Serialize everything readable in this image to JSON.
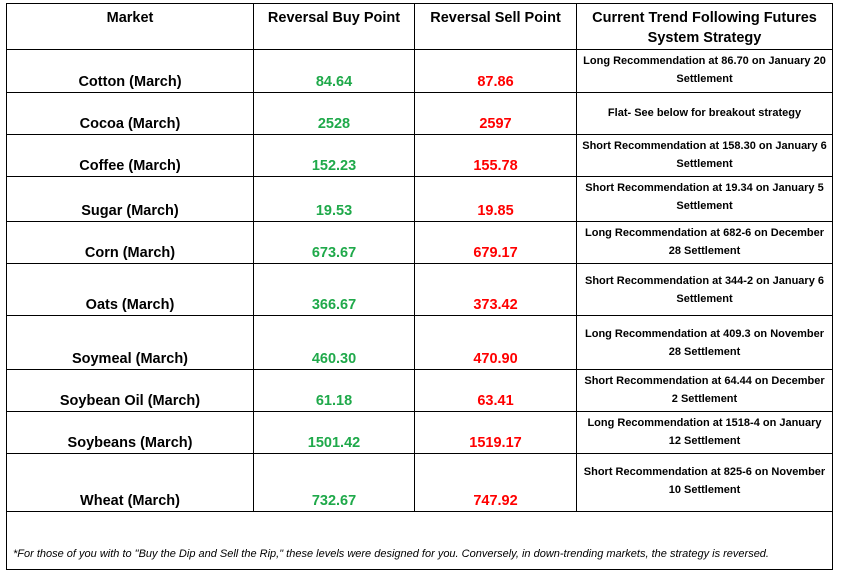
{
  "headers": {
    "market": "Market",
    "buy": "Reversal Buy Point",
    "sell": "Reversal Sell Point",
    "strategy": "Current Trend Following Futures System Strategy"
  },
  "rows": [
    {
      "market": "Cotton (March)",
      "buy": "84.64",
      "sell": "87.86",
      "strategy": "Long Recommendation at 86.70 on January 20 Settlement"
    },
    {
      "market": "Cocoa (March)",
      "buy": "2528",
      "sell": "2597",
      "strategy": "Flat- See below for breakout strategy"
    },
    {
      "market": "Coffee (March)",
      "buy": "152.23",
      "sell": "155.78",
      "strategy": "Short Recommendation at 158.30 on January 6 Settlement"
    },
    {
      "market": "Sugar (March)",
      "buy": "19.53",
      "sell": "19.85",
      "strategy": "Short Recommendation at 19.34 on January 5 Settlement"
    },
    {
      "market": "Corn (March)",
      "buy": "673.67",
      "sell": "679.17",
      "strategy": "Long Recommendation at 682-6 on December 28 Settlement"
    },
    {
      "market": "Oats (March)",
      "buy": "366.67",
      "sell": "373.42",
      "strategy": "Short Recommendation at 344-2 on January 6 Settlement"
    },
    {
      "market": "Soymeal (March)",
      "buy": "460.30",
      "sell": "470.90",
      "strategy": "Long Recommendation at 409.3 on November 28 Settlement"
    },
    {
      "market": "Soybean Oil (March)",
      "buy": "61.18",
      "sell": "63.41",
      "strategy": "Short Recommendation at 64.44 on December 2 Settlement"
    },
    {
      "market": "Soybeans (March)",
      "buy": "1501.42",
      "sell": "1519.17",
      "strategy": "Long Recommendation at 1518-4 on January 12 Settlement"
    },
    {
      "market": "Wheat (March)",
      "buy": "732.67",
      "sell": "747.92",
      "strategy": "Short Recommendation at 825-6 on November 10 Settlement"
    }
  ],
  "footnote": "*For those of you with to \"Buy the Dip and Sell the Rip,\" these levels were designed for you. Conversely, in down-trending markets, the strategy is reversed.",
  "colors": {
    "buy": "#1fa94a",
    "sell": "#ff0000"
  }
}
